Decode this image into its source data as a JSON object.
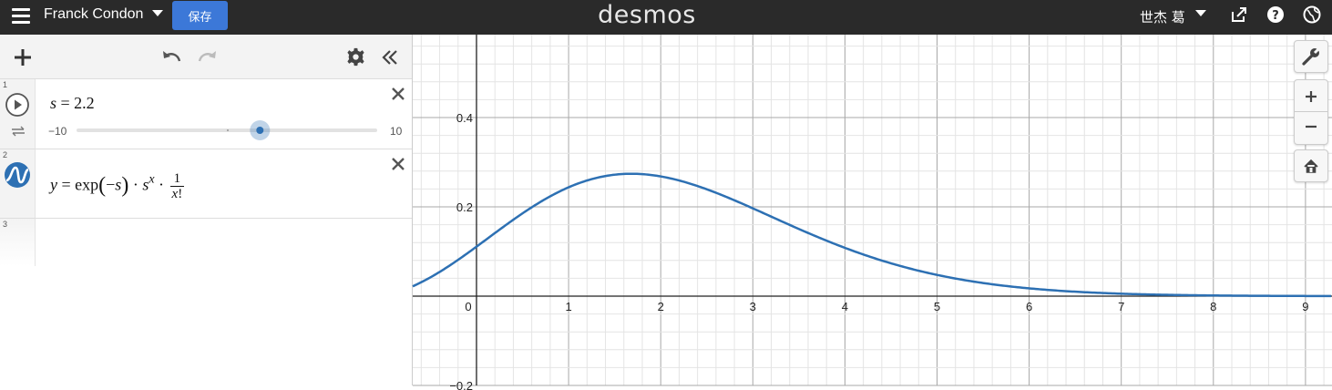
{
  "header": {
    "graph_title": "Franck Condon",
    "save_label": "保存",
    "logo": "desmos",
    "user_name": "世杰 葛"
  },
  "expressions": [
    {
      "index": "1",
      "type": "slider",
      "lhs": "s",
      "value": "2.2",
      "slider_min": "−10",
      "slider_max": "10",
      "slider_fraction": 0.61
    },
    {
      "index": "2",
      "type": "function",
      "latex": "y = exp(−s) · s^x · 1/x!",
      "color": "#2d70b3"
    },
    {
      "index": "3",
      "type": "empty"
    }
  ],
  "graph": {
    "x_tick_labels": [
      "0",
      "1",
      "2",
      "3",
      "4",
      "5",
      "6",
      "7",
      "8",
      "9"
    ],
    "y_tick_labels": [
      "0.4",
      "0.2",
      "−0.2"
    ],
    "curve_color": "#2d70b3"
  },
  "colors": {
    "topbar": "#2a2a2a",
    "accent": "#3c78d8"
  }
}
